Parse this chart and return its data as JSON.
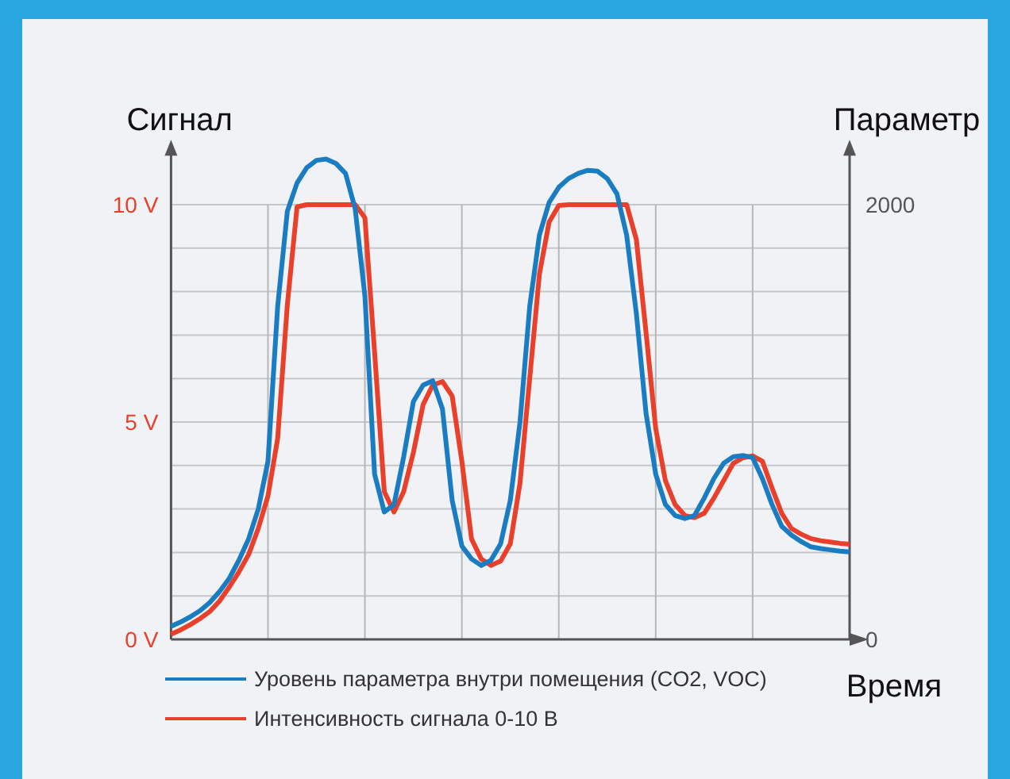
{
  "chart_data": {
    "type": "line",
    "ylabel": "Сигнал",
    "y2label": "Параметр",
    "xlabel": "Время",
    "categories": [
      null,
      null,
      null,
      null,
      null,
      null,
      null,
      null,
      null,
      null,
      null,
      null,
      null,
      null,
      null,
      null,
      null,
      null,
      null,
      null,
      null,
      null,
      null,
      null,
      null,
      null,
      null,
      null,
      null,
      null,
      null,
      null,
      null,
      null,
      null,
      null,
      null,
      null,
      null,
      null,
      null,
      null,
      null,
      null,
      null,
      null,
      null,
      null,
      null,
      null,
      null,
      null,
      null,
      null,
      null,
      null,
      null,
      null,
      null,
      null,
      null,
      null,
      null,
      null,
      null,
      null,
      null,
      null,
      null,
      null,
      null
    ],
    "ylim": [
      0,
      11.2
    ],
    "yticks": [
      {
        "value": 0,
        "label": "0 V"
      },
      {
        "value": 1,
        "label": null
      },
      {
        "value": 2,
        "label": null
      },
      {
        "value": 3,
        "label": null
      },
      {
        "value": 4,
        "label": null
      },
      {
        "value": 5,
        "label": "5 V"
      },
      {
        "value": 6,
        "label": null
      },
      {
        "value": 7,
        "label": null
      },
      {
        "value": 8,
        "label": null
      },
      {
        "value": 9,
        "label": null
      },
      {
        "value": 10,
        "label": "10 V"
      }
    ],
    "y2lim": [
      0,
      2240
    ],
    "y2ticks": [
      0,
      2000
    ],
    "grid": true,
    "legend": "bottom",
    "line_style": "solid",
    "series": [
      {
        "name": "Уровень параметра внутри помещения (CO2, VOC)",
        "color": "#1a7cc1",
        "axis": "y2",
        "values": [
          60,
          80,
          104,
          132,
          170,
          220,
          280,
          364,
          462,
          600,
          820,
          1532,
          1970,
          2100,
          2170,
          2204,
          2210,
          2190,
          2144,
          1980,
          1580,
          760,
          586,
          620,
          840,
          1094,
          1170,
          1190,
          1060,
          640,
          430,
          370,
          340,
          364,
          440,
          640,
          1000,
          1532,
          1860,
          2010,
          2080,
          2120,
          2144,
          2158,
          2154,
          2120,
          2050,
          1860,
          1500,
          1040,
          760,
          620,
          570,
          556,
          570,
          650,
          740,
          810,
          840,
          846,
          836,
          740,
          620,
          520,
          480,
          450,
          426,
          418,
          412,
          406,
          402
        ]
      },
      {
        "name": "Интенсивность сигнала 0-10 В",
        "color": "#e8402a",
        "axis": "y",
        "values": [
          0.12,
          0.22,
          0.34,
          0.48,
          0.64,
          0.88,
          1.2,
          1.55,
          1.95,
          2.55,
          3.3,
          4.62,
          7.7,
          9.95,
          10,
          10,
          10,
          10,
          10,
          10,
          9.7,
          6.6,
          3.4,
          2.93,
          3.4,
          4.3,
          5.4,
          5.85,
          5.93,
          5.6,
          4.1,
          2.31,
          1.85,
          1.7,
          1.8,
          2.2,
          3.6,
          6.0,
          8.4,
          9.6,
          9.98,
          10,
          10,
          10,
          10,
          10,
          10,
          10,
          9.2,
          7.06,
          4.85,
          3.65,
          3.1,
          2.85,
          2.8,
          2.9,
          3.25,
          3.65,
          4.05,
          4.18,
          4.22,
          4.1,
          3.48,
          2.9,
          2.55,
          2.42,
          2.32,
          2.27,
          2.24,
          2.21,
          2.19
        ]
      }
    ]
  }
}
